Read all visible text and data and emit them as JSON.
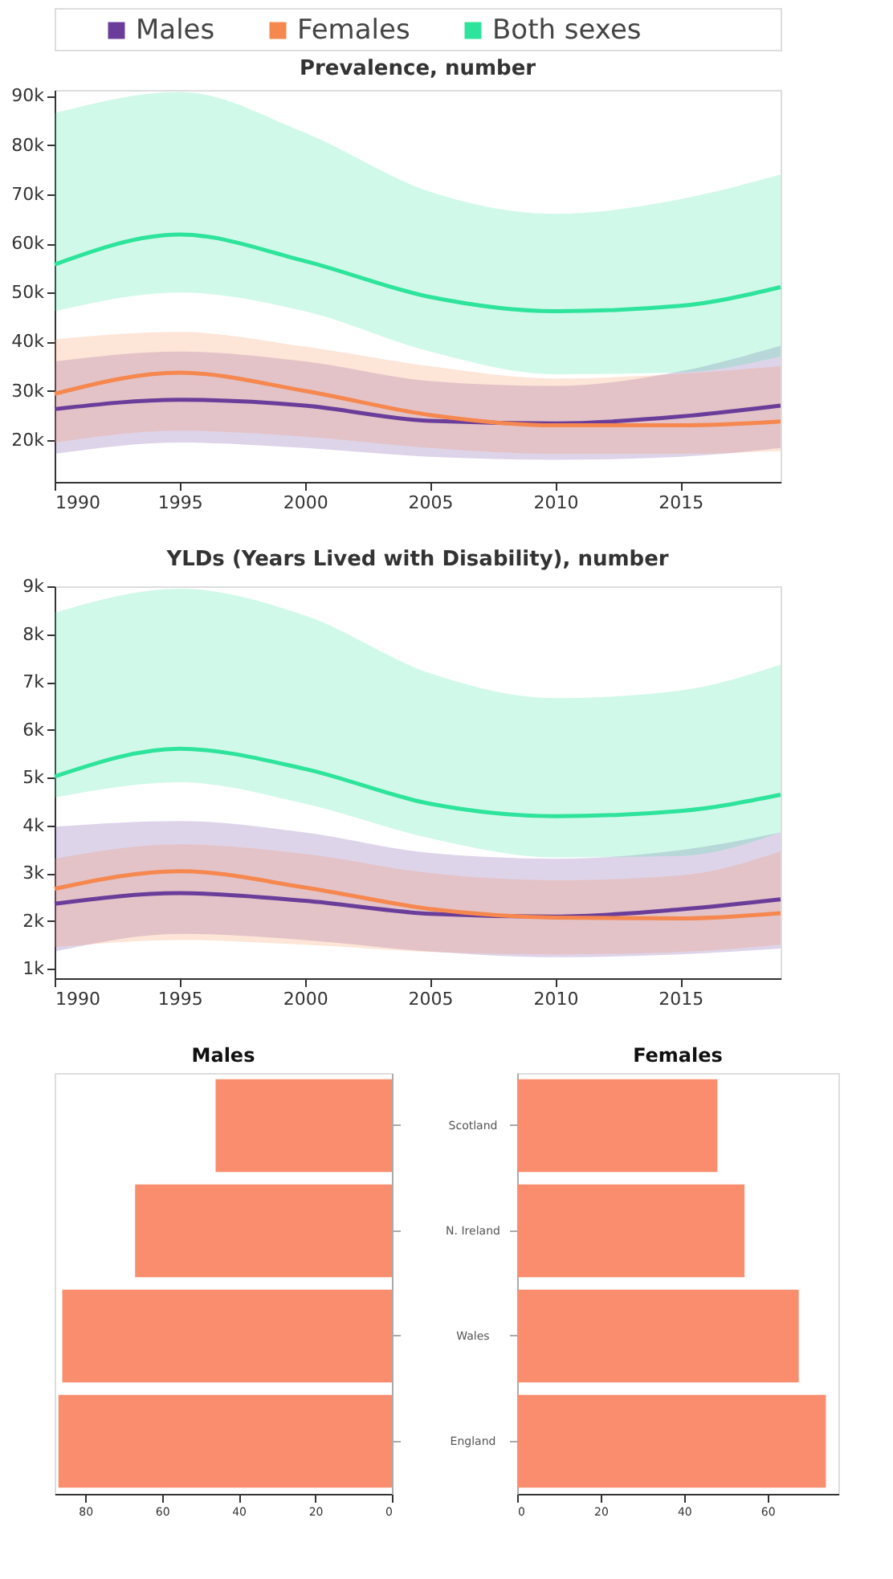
{
  "chart_data": [
    {
      "type": "line",
      "title": "Prevalence, number",
      "x": [
        1990,
        1995,
        2000,
        2005,
        2010,
        2015,
        2019
      ],
      "legend": "top",
      "series": [
        {
          "name": "Males",
          "color": "#6a3d9a",
          "values": [
            26300,
            28200,
            27000,
            23900,
            23400,
            24800,
            27000
          ],
          "lower": [
            17200,
            19500,
            18400,
            16600,
            16000,
            16600,
            18400
          ],
          "upper": [
            36000,
            38000,
            36000,
            32000,
            31000,
            34000,
            39200
          ]
        },
        {
          "name": "Females",
          "color": "#f5874f",
          "values": [
            29400,
            33700,
            30000,
            25100,
            23000,
            23000,
            23800
          ],
          "lower": [
            19500,
            21900,
            20700,
            18400,
            17200,
            17200,
            17800
          ],
          "upper": [
            40500,
            42000,
            39000,
            35000,
            32500,
            33500,
            35000
          ]
        },
        {
          "name": "Both sexes",
          "color": "#2ee39b",
          "values": [
            55700,
            61800,
            56400,
            49100,
            46200,
            47300,
            51100
          ],
          "lower": [
            46200,
            50000,
            46200,
            38000,
            33400,
            33700,
            37000
          ],
          "upper": [
            86500,
            90800,
            82500,
            70500,
            66000,
            69000,
            74000
          ]
        }
      ],
      "xlim": [
        1990,
        2019
      ],
      "xticks": [
        1990,
        1995,
        2000,
        2005,
        2010,
        2015
      ],
      "ylim": [
        11500,
        91200
      ],
      "yticks": [
        {
          "value": 20000,
          "label": "20k"
        },
        {
          "value": 30000,
          "label": "30k"
        },
        {
          "value": 40000,
          "label": "40k"
        },
        {
          "value": 50000,
          "label": "50k"
        },
        {
          "value": 60000,
          "label": "60k"
        },
        {
          "value": 70000,
          "label": "70k"
        },
        {
          "value": 80000,
          "label": "80k"
        },
        {
          "value": 90000,
          "label": "90k"
        }
      ]
    },
    {
      "type": "line",
      "title": "YLDs (Years Lived with Disability), number",
      "x": [
        1990,
        1995,
        2000,
        2005,
        2010,
        2015,
        2019
      ],
      "series": [
        {
          "color": "#6a3d9a",
          "values": [
            2360,
            2580,
            2420,
            2150,
            2090,
            2240,
            2450
          ],
          "lower": [
            1360,
            1730,
            1600,
            1360,
            1240,
            1300,
            1420
          ],
          "upper": [
            3970,
            4090,
            3850,
            3420,
            3300,
            3480,
            3850
          ]
        },
        {
          "color": "#f5874f",
          "values": [
            2670,
            3040,
            2700,
            2250,
            2070,
            2050,
            2160
          ],
          "lower": [
            1450,
            1600,
            1500,
            1350,
            1300,
            1350,
            1500
          ],
          "upper": [
            3300,
            3600,
            3400,
            3000,
            2850,
            2950,
            3450
          ]
        },
        {
          "color": "#2ee39b",
          "values": [
            5020,
            5600,
            5180,
            4450,
            4190,
            4300,
            4640
          ],
          "lower": [
            4580,
            4900,
            4450,
            3730,
            3330,
            3360,
            3850
          ],
          "upper": [
            8450,
            8950,
            8390,
            7180,
            6660,
            6820,
            7360
          ]
        }
      ],
      "xlim": [
        1990,
        2019
      ],
      "xticks": [
        1990,
        1995,
        2000,
        2005,
        2010,
        2015
      ],
      "ylim": [
        800,
        9000
      ],
      "yticks": [
        {
          "value": 1000,
          "label": "1k"
        },
        {
          "value": 2000,
          "label": "2k"
        },
        {
          "value": 3000,
          "label": "3k"
        },
        {
          "value": 4000,
          "label": "4k"
        },
        {
          "value": 5000,
          "label": "5k"
        },
        {
          "value": 6000,
          "label": "6k"
        },
        {
          "value": 7000,
          "label": "7k"
        },
        {
          "value": 8000,
          "label": "8k"
        },
        {
          "value": 9000,
          "label": "9k"
        }
      ]
    },
    {
      "type": "bar",
      "title": "Males",
      "orientation": "horizontal",
      "categories": [
        "Scotland",
        "N. Ireland",
        "Wales",
        "England"
      ],
      "values": [
        46,
        67,
        86,
        87
      ],
      "color": "#fb8d6f",
      "xlim": [
        88,
        0
      ],
      "xticks": [
        80,
        60,
        40,
        20,
        0
      ]
    },
    {
      "type": "bar",
      "title": "Females",
      "orientation": "horizontal",
      "categories": [
        null,
        null,
        null,
        null
      ],
      "values": [
        48,
        54.5,
        67.5,
        74
      ],
      "color": "#fb8d6f",
      "xlim": [
        0,
        77
      ],
      "xticks": [
        0,
        20,
        40,
        60
      ],
      "tick_labels": "x"
    }
  ]
}
